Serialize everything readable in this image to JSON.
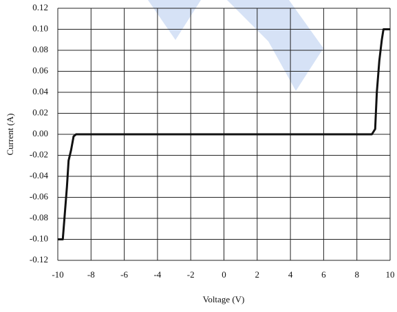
{
  "chart_data": {
    "type": "line",
    "x_label": "Voltage (V)",
    "y_label": "Current (A)",
    "x": [
      -10,
      -9.7,
      -9.6,
      -9.45,
      -9.35,
      -9.2,
      -9.05,
      -8.9,
      8.9,
      9.1,
      9.2,
      9.35,
      9.5,
      9.6,
      10
    ],
    "values": [
      -0.1,
      -0.1,
      -0.08,
      -0.05,
      -0.025,
      -0.015,
      -0.002,
      0,
      0,
      0.005,
      0.04,
      0.07,
      0.09,
      0.1,
      0.1
    ],
    "color": "#111111",
    "xlim": [
      -10,
      10
    ],
    "xticks": [
      -10,
      -8,
      -6,
      -4,
      -2,
      0,
      2,
      4,
      6,
      8,
      10
    ],
    "ylim": [
      -0.12,
      0.12
    ],
    "yticks": [
      {
        "value": -0.12,
        "label": "-0.12"
      },
      {
        "value": -0.1,
        "label": "-0.10"
      },
      {
        "value": -0.08,
        "label": "-0.08"
      },
      {
        "value": -0.06,
        "label": "-0.06"
      },
      {
        "value": -0.04,
        "label": "-0.04"
      },
      {
        "value": -0.02,
        "label": "-0.02"
      },
      {
        "value": 0,
        "label": "0.00"
      },
      {
        "value": 0.02,
        "label": "0.02"
      },
      {
        "value": 0.04,
        "label": "0.04"
      },
      {
        "value": 0.06,
        "label": "0.06"
      },
      {
        "value": 0.08,
        "label": "0.08"
      },
      {
        "value": 0.1,
        "label": "0.10"
      },
      {
        "value": 0.12,
        "label": "0.12"
      }
    ],
    "grid": true
  }
}
